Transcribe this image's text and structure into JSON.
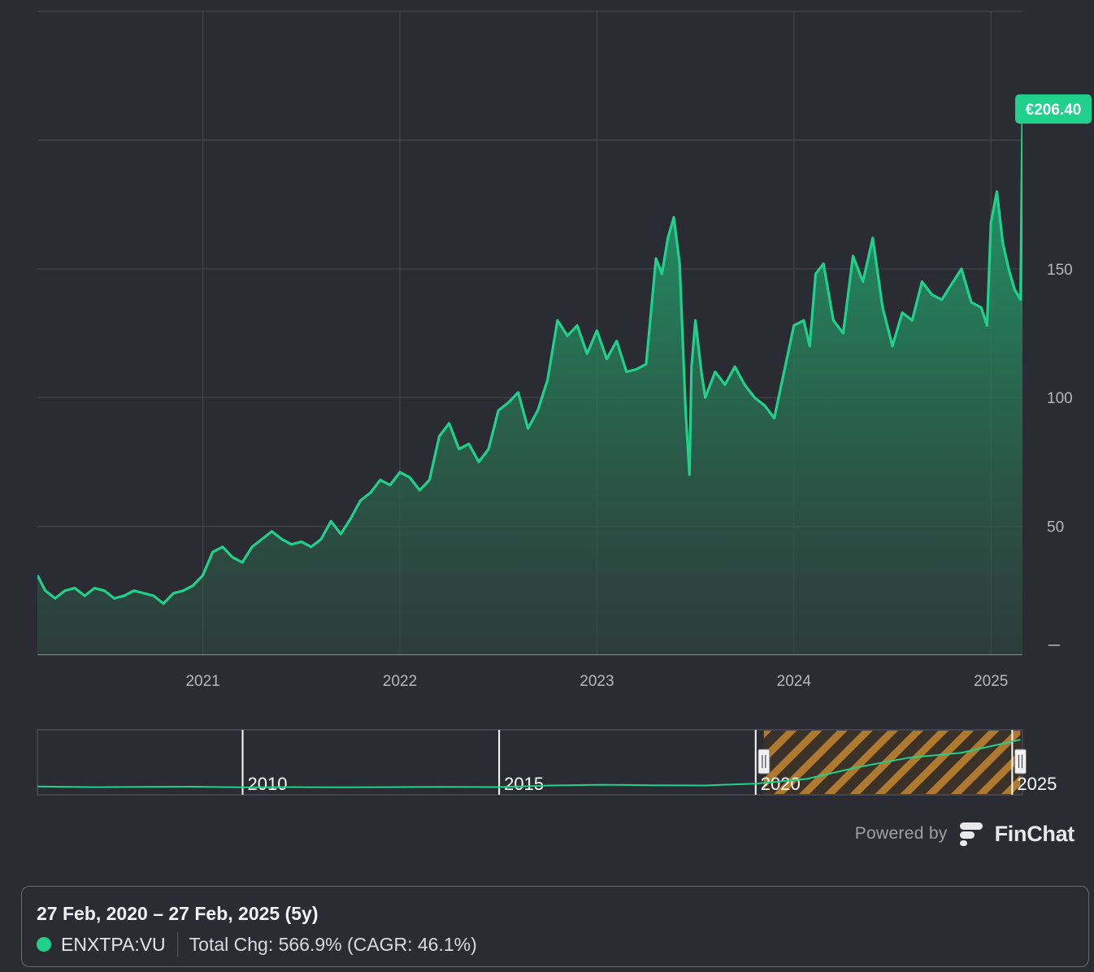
{
  "chart_data": {
    "type": "area",
    "y_ticks": [
      50,
      100,
      150
    ],
    "ylim": [
      0,
      250
    ],
    "x_tick_labels": [
      "2021",
      "2022",
      "2023",
      "2024",
      "2025"
    ],
    "x_ticks": [
      2021.0,
      2022.0,
      2023.0,
      2024.0,
      2025.0
    ],
    "xlim": [
      2020.16,
      2025.16
    ],
    "grid": true,
    "line_color": "#1fd18a",
    "last_price_label": "€206.40",
    "series": [
      {
        "x": [
          2020.16,
          2020.2,
          2020.25,
          2020.3,
          2020.35,
          2020.4,
          2020.45,
          2020.5,
          2020.55,
          2020.6,
          2020.65,
          2020.7,
          2020.75,
          2020.8,
          2020.85,
          2020.9,
          2020.95,
          2021.0,
          2021.05,
          2021.1,
          2021.15,
          2021.2,
          2021.25,
          2021.3,
          2021.35,
          2021.4,
          2021.45,
          2021.5,
          2021.55,
          2021.6,
          2021.65,
          2021.7,
          2021.75,
          2021.8,
          2021.85,
          2021.9,
          2021.95,
          2022.0,
          2022.05,
          2022.1,
          2022.15,
          2022.2,
          2022.25,
          2022.3,
          2022.35,
          2022.4,
          2022.45,
          2022.5,
          2022.55,
          2022.6,
          2022.65,
          2022.7,
          2022.75,
          2022.8,
          2022.85,
          2022.9,
          2022.95,
          2023.0,
          2023.05,
          2023.1,
          2023.15,
          2023.2,
          2023.25,
          2023.3,
          2023.33,
          2023.36,
          2023.39,
          2023.42,
          2023.45,
          2023.47,
          2023.48,
          2023.5,
          2023.53,
          2023.55,
          2023.6,
          2023.65,
          2023.7,
          2023.75,
          2023.8,
          2023.85,
          2023.9,
          2023.95,
          2024.0,
          2024.05,
          2024.08,
          2024.11,
          2024.15,
          2024.2,
          2024.25,
          2024.3,
          2024.35,
          2024.4,
          2024.45,
          2024.5,
          2024.55,
          2024.6,
          2024.65,
          2024.7,
          2024.75,
          2024.8,
          2024.85,
          2024.9,
          2024.95,
          2024.98,
          2025.0,
          2025.03,
          2025.06,
          2025.09,
          2025.12,
          2025.15,
          2025.16
        ],
        "y": [
          31,
          25,
          22,
          25,
          26,
          23,
          26,
          25,
          22,
          23,
          25,
          24,
          23,
          20,
          24,
          25,
          27,
          31,
          40,
          42,
          38,
          36,
          42,
          45,
          48,
          45,
          43,
          44,
          42,
          45,
          52,
          47,
          53,
          60,
          63,
          68,
          66,
          71,
          69,
          64,
          68,
          85,
          90,
          80,
          82,
          75,
          80,
          95,
          98,
          102,
          88,
          95,
          107,
          130,
          124,
          128,
          117,
          126,
          115,
          122,
          110,
          111,
          113,
          154,
          148,
          162,
          170,
          152,
          95,
          70,
          112,
          130,
          110,
          100,
          110,
          105,
          112,
          105,
          100,
          97,
          92,
          110,
          128,
          130,
          120,
          148,
          152,
          130,
          125,
          155,
          145,
          162,
          135,
          120,
          133,
          130,
          145,
          140,
          138,
          144,
          150,
          137,
          135,
          128,
          168,
          180,
          160,
          150,
          142,
          138,
          206.4
        ]
      }
    ]
  },
  "navigator": {
    "labels": [
      "2010",
      "2015",
      "2020",
      "2025"
    ],
    "label_years": [
      2010,
      2015,
      2020,
      2025
    ],
    "range": [
      2006,
      2025.2
    ],
    "selection": [
      2020.16,
      2025.16
    ],
    "x": [
      2006,
      2007,
      2008,
      2009,
      2010,
      2011,
      2012,
      2013,
      2014,
      2015,
      2016,
      2017,
      2018,
      2019,
      2020,
      2021,
      2022,
      2023,
      2024,
      2025.16
    ],
    "y": [
      8,
      5,
      6,
      7,
      4,
      5,
      4,
      5,
      6,
      5,
      12,
      15,
      13,
      12,
      20,
      40,
      90,
      130,
      150,
      206
    ]
  },
  "branding": {
    "powered_by": "Powered by",
    "name": "FinChat"
  },
  "summary": {
    "range": "27 Feb, 2020 – 27 Feb, 2025 (5y)",
    "ticker": "ENXTPA:VU",
    "change": "Total Chg: 566.9% (CAGR: 46.1%)"
  }
}
